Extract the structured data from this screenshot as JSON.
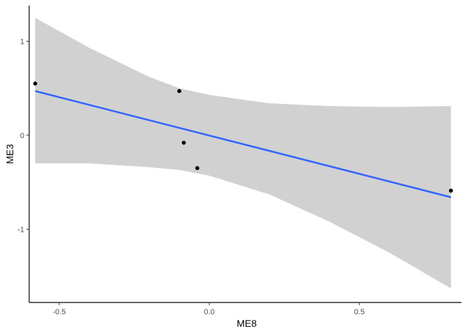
{
  "chart_data": {
    "type": "scatter",
    "title": "",
    "xlabel": "ME8",
    "ylabel": "ME3",
    "xlim": [
      -0.6,
      0.84
    ],
    "ylim": [
      -1.78,
      1.38
    ],
    "x_ticks": [
      -0.5,
      0.0,
      0.5
    ],
    "x_tick_labels": [
      "-0.5",
      "0.0",
      "0.5"
    ],
    "y_ticks": [
      -1,
      0,
      1
    ],
    "y_tick_labels": [
      "-1",
      "0",
      "1"
    ],
    "grid": false,
    "points": [
      {
        "x": -0.58,
        "y": 0.55
      },
      {
        "x": -0.1,
        "y": 0.47
      },
      {
        "x": -0.085,
        "y": -0.08
      },
      {
        "x": -0.04,
        "y": -0.35
      },
      {
        "x": 0.805,
        "y": -0.59
      }
    ],
    "fit": {
      "type": "linear",
      "x": [
        -0.58,
        0.805
      ],
      "y": [
        0.47,
        -0.66
      ],
      "color": "#3366FF"
    },
    "confidence_band": {
      "color": "#cccccc",
      "x": [
        -0.58,
        -0.4,
        -0.2,
        -0.1,
        0.0,
        0.2,
        0.4,
        0.6,
        0.805
      ],
      "upper": [
        1.25,
        0.93,
        0.62,
        0.5,
        0.43,
        0.34,
        0.31,
        0.3,
        0.31
      ],
      "lower": [
        -0.3,
        -0.3,
        -0.34,
        -0.37,
        -0.43,
        -0.63,
        -0.92,
        -1.25,
        -1.63
      ]
    },
    "point_color": "#000000"
  }
}
